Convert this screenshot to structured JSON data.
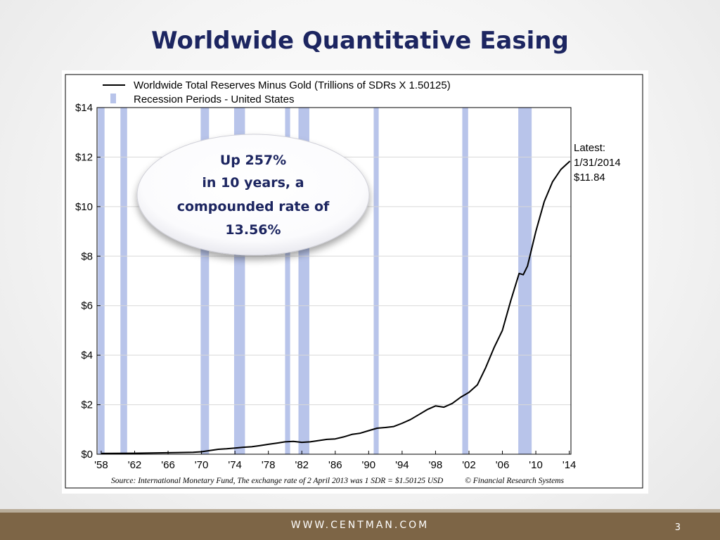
{
  "slide": {
    "title": "Worldwide Quantitative Easing",
    "footer_site": "WWW.CENTMAN.COM",
    "page_number": "3"
  },
  "callout": {
    "lines": [
      "Up 257%",
      "in 10 years, a",
      "compounded rate of",
      "13.56%"
    ],
    "color": "#1c2560"
  },
  "annotation": {
    "lines": [
      "Latest:",
      "1/31/2014",
      "$11.84"
    ]
  },
  "source": "Source: International Monetary Fund, The exchange rate of 2 April 2013 was 1 SDR = $1.50125 USD",
  "credit": "© Financial Research Systems",
  "legend": [
    {
      "label": "Worldwide Total Reserves Minus Gold (Trillions of SDRs X 1.50125)",
      "kind": "line",
      "color": "#000000"
    },
    {
      "label": "Recession Periods - United States",
      "kind": "band",
      "color": "#b8c4ea"
    }
  ],
  "chart_data": {
    "type": "line",
    "xlim": [
      1957.5,
      2014.2
    ],
    "ylim": [
      0,
      14
    ],
    "x_ticks": [
      {
        "value": 1958,
        "label": "'58"
      },
      {
        "value": 1962,
        "label": "'62"
      },
      {
        "value": 1966,
        "label": "'66"
      },
      {
        "value": 1970,
        "label": "'70"
      },
      {
        "value": 1974,
        "label": "'74"
      },
      {
        "value": 1978,
        "label": "'78"
      },
      {
        "value": 1982,
        "label": "'82"
      },
      {
        "value": 1986,
        "label": "'86"
      },
      {
        "value": 1990,
        "label": "'90"
      },
      {
        "value": 1994,
        "label": "'94"
      },
      {
        "value": 1998,
        "label": "'98"
      },
      {
        "value": 2002,
        "label": "'02"
      },
      {
        "value": 2006,
        "label": "'06"
      },
      {
        "value": 2010,
        "label": "'10"
      },
      {
        "value": 2014,
        "label": "'14"
      }
    ],
    "y_ticks": [
      {
        "value": 0,
        "label": "$0"
      },
      {
        "value": 2,
        "label": "$2"
      },
      {
        "value": 4,
        "label": "$4"
      },
      {
        "value": 6,
        "label": "$6"
      },
      {
        "value": 8,
        "label": "$8"
      },
      {
        "value": 10,
        "label": "$10"
      },
      {
        "value": 12,
        "label": "$12"
      },
      {
        "value": 14,
        "label": "$14"
      }
    ],
    "recessions": [
      [
        1957.6,
        1958.4
      ],
      [
        1960.3,
        1961.1
      ],
      [
        1969.9,
        1970.9
      ],
      [
        1973.9,
        1975.2
      ],
      [
        1980.0,
        1980.6
      ],
      [
        1981.6,
        1982.9
      ],
      [
        1990.6,
        1991.2
      ],
      [
        2001.2,
        2001.9
      ],
      [
        2007.9,
        2009.5
      ]
    ],
    "series": [
      {
        "name": "Worldwide Total Reserves Minus Gold (Trillions of SDRs X 1.50125)",
        "color": "#000000",
        "x": [
          1958,
          1962,
          1966,
          1969,
          1970,
          1971,
          1972,
          1973,
          1974,
          1975,
          1976,
          1977,
          1978,
          1979,
          1980,
          1981,
          1982,
          1983,
          1984,
          1985,
          1986,
          1987,
          1988,
          1989,
          1990,
          1991,
          1992,
          1993,
          1994,
          1995,
          1996,
          1997,
          1998,
          1999,
          2000,
          2001,
          2002,
          2003,
          2004,
          2005,
          2006,
          2007,
          2008,
          2008.5,
          2009,
          2010,
          2011,
          2012,
          2013,
          2014.08
        ],
        "y": [
          0.03,
          0.04,
          0.06,
          0.08,
          0.1,
          0.15,
          0.2,
          0.22,
          0.25,
          0.28,
          0.3,
          0.35,
          0.4,
          0.45,
          0.5,
          0.52,
          0.48,
          0.5,
          0.55,
          0.6,
          0.62,
          0.7,
          0.8,
          0.85,
          0.95,
          1.05,
          1.08,
          1.12,
          1.25,
          1.4,
          1.6,
          1.8,
          1.95,
          1.9,
          2.05,
          2.3,
          2.5,
          2.8,
          3.5,
          4.3,
          5.0,
          6.2,
          7.3,
          7.25,
          7.6,
          9.0,
          10.2,
          11.0,
          11.5,
          11.84
        ]
      }
    ]
  }
}
